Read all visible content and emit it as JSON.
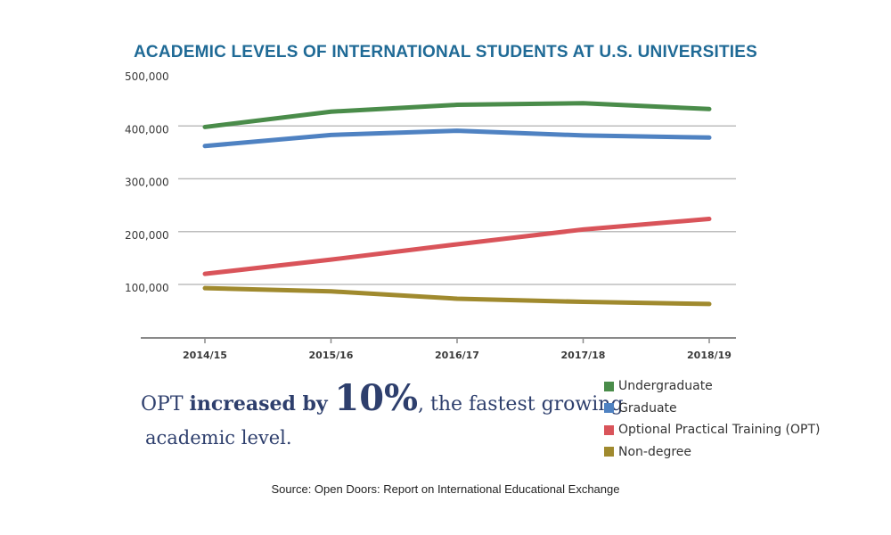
{
  "title": "ACADEMIC LEVELS OF INTERNATIONAL STUDENTS AT U.S. UNIVERSITIES",
  "source": "Source: Open Doors: Report on International Educational Exchange",
  "callout": {
    "part1": "OPT ",
    "part2": "increased by ",
    "part3": "10%",
    "part4": ", the fastest growing",
    "line2": "academic level."
  },
  "legend": [
    {
      "label": "Undergraduate",
      "color": "#4a8c4a"
    },
    {
      "label": "Graduate",
      "color": "#4f82c2"
    },
    {
      "label": "Optional Practical Training (OPT)",
      "color": "#d9545a"
    },
    {
      "label": "Non-degree",
      "color": "#a08a2e"
    }
  ],
  "chart_data": {
    "type": "line",
    "x": [
      "2014/15",
      "2015/16",
      "2016/17",
      "2017/18",
      "2018/19"
    ],
    "ytick_labels": [
      "100,000",
      "200,000",
      "300,000",
      "400,000",
      "500,000"
    ],
    "ytick_values": [
      100000,
      200000,
      300000,
      400000,
      500000
    ],
    "ylim": [
      0,
      500000
    ],
    "grid": true,
    "series": [
      {
        "name": "Undergraduate",
        "color": "#4a8c4a",
        "values": [
          398000,
          427000,
          440000,
          443000,
          432000
        ]
      },
      {
        "name": "Graduate",
        "color": "#4f82c2",
        "values": [
          362000,
          383000,
          391000,
          382000,
          378000
        ]
      },
      {
        "name": "Optional Practical Training (OPT)",
        "color": "#d9545a",
        "values": [
          120000,
          147000,
          176000,
          204000,
          224000
        ]
      },
      {
        "name": "Non-degree",
        "color": "#a08a2e",
        "values": [
          93000,
          87000,
          73000,
          67000,
          63000
        ]
      }
    ]
  }
}
